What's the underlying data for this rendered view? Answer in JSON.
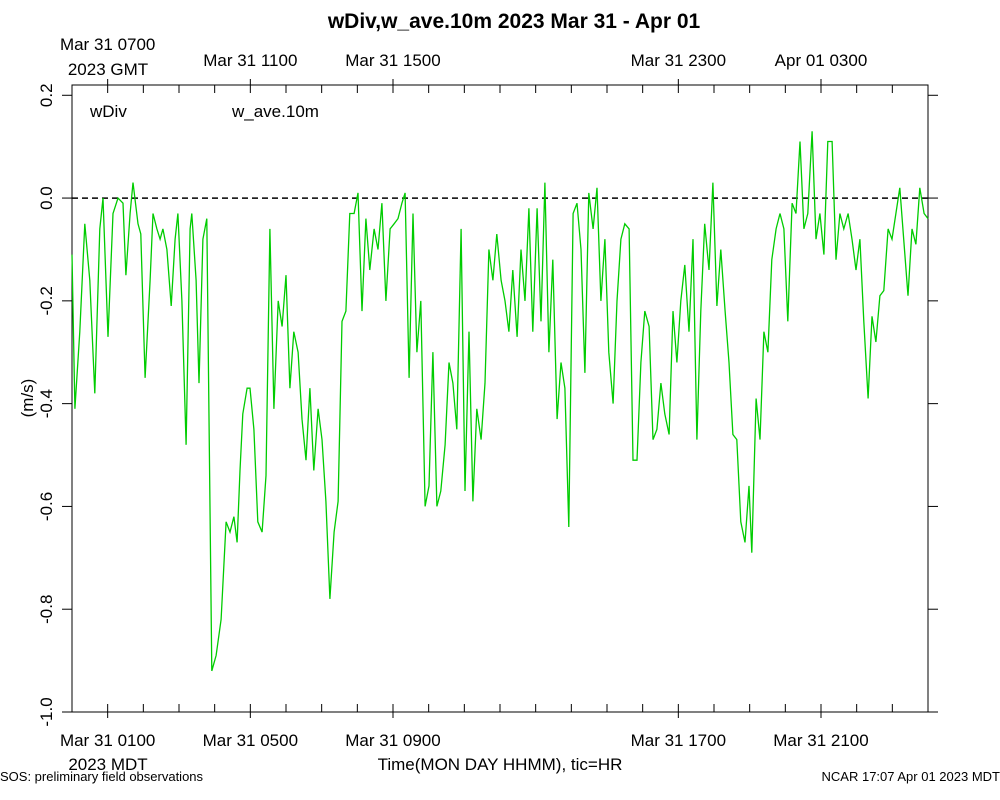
{
  "chart_data": {
    "type": "line",
    "title": "wDiv,w_ave.10m 2023 Mar 31 - Apr 01",
    "ylabel": "(m/s)",
    "xlabel": "Time(MON DAY HHMM), tic=HR",
    "bottom_timezone": "2023 MDT",
    "top_timezone": "2023 GMT",
    "footer_left": "SOS: preliminary field observations",
    "footer_right": "NCAR 17:07 Apr 01 2023 MDT",
    "xlim": [
      0,
      24
    ],
    "ylim": [
      -1.0,
      0.22
    ],
    "reference_line": 0,
    "xticks": [
      0,
      1,
      2,
      3,
      4,
      5,
      6,
      7,
      8,
      9,
      10,
      11,
      12,
      13,
      14,
      15,
      16,
      17,
      18,
      19,
      20,
      21,
      22,
      23,
      24
    ],
    "xtick_labels": [
      {
        "value": 1,
        "label": "Mar 31 0100"
      },
      {
        "value": 5,
        "label": "Mar 31 0500"
      },
      {
        "value": 9,
        "label": "Mar 31 0900"
      },
      {
        "value": 17,
        "label": "Mar 31 1700"
      },
      {
        "value": 21,
        "label": "Mar 31 2100"
      }
    ],
    "x2tick_labels": [
      {
        "value": 1,
        "label": "Mar 31 0700"
      },
      {
        "value": 5,
        "label": "Mar 31 1100"
      },
      {
        "value": 9,
        "label": "Mar 31 1500"
      },
      {
        "value": 17,
        "label": "Mar 31 2300"
      },
      {
        "value": 21,
        "label": "Apr 01 0300"
      }
    ],
    "yticks": [
      {
        "value": -1.0,
        "label": "-1.0"
      },
      -0.8,
      -0.6,
      -0.4,
      -0.2,
      {
        "value": 0,
        "label": "0.0"
      },
      0.2
    ],
    "x": [
      0,
      0.08,
      0.22,
      0.36,
      0.5,
      0.64,
      0.78,
      0.87,
      1.01,
      1.15,
      1.29,
      1.43,
      1.51,
      1.63,
      1.71,
      1.85,
      1.93,
      2.05,
      2.19,
      2.27,
      2.38,
      2.47,
      2.55,
      2.66,
      2.78,
      2.89,
      2.97,
      3.08,
      3.2,
      3.31,
      3.36,
      3.48,
      3.56,
      3.67,
      3.78,
      3.92,
      4.04,
      4.18,
      4.32,
      4.43,
      4.54,
      4.63,
      4.71,
      4.79,
      4.91,
      4.99,
      5.1,
      5.21,
      5.33,
      5.44,
      5.55,
      5.66,
      5.78,
      5.89,
      6.0,
      6.11,
      6.22,
      6.34,
      6.45,
      6.56,
      6.67,
      6.78,
      6.9,
      7.01,
      7.12,
      7.23,
      7.35,
      7.46,
      7.57,
      7.68,
      7.79,
      7.91,
      8.02,
      8.13,
      8.24,
      8.35,
      8.47,
      8.58,
      8.69,
      8.8,
      8.92,
      9.03,
      9.14,
      9.25,
      9.34,
      9.45,
      9.56,
      9.67,
      9.78,
      9.9,
      10.01,
      10.12,
      10.23,
      10.34,
      10.46,
      10.57,
      10.68,
      10.79,
      10.91,
      11.02,
      11.13,
      11.24,
      11.35,
      11.47,
      11.58,
      11.69,
      11.8,
      11.91,
      12.03,
      12.14,
      12.25,
      12.36,
      12.48,
      12.59,
      12.7,
      12.81,
      12.92,
      13.04,
      13.15,
      13.26,
      13.37,
      13.48,
      13.6,
      13.71,
      13.82,
      13.93,
      14.05,
      14.16,
      14.27,
      14.38,
      14.49,
      14.61,
      14.72,
      14.83,
      14.94,
      15.05,
      15.17,
      15.28,
      15.39,
      15.5,
      15.62,
      15.73,
      15.84,
      15.95,
      16.06,
      16.18,
      16.29,
      16.4,
      16.51,
      16.62,
      16.74,
      16.85,
      16.96,
      17.07,
      17.18,
      17.3,
      17.41,
      17.52,
      17.63,
      17.74,
      17.86,
      17.97,
      18.08,
      18.19,
      18.31,
      18.42,
      18.53,
      18.64,
      18.75,
      18.87,
      18.98,
      19.06,
      19.18,
      19.29,
      19.4,
      19.51,
      19.62,
      19.74,
      19.85,
      19.96,
      20.07,
      20.19,
      20.3,
      20.41,
      20.52,
      20.63,
      20.75,
      20.86,
      20.97,
      21.08,
      21.19,
      21.31,
      21.42,
      21.53,
      21.64,
      21.76,
      21.87,
      21.98,
      22.09,
      22.2,
      22.32,
      22.43,
      22.54,
      22.65,
      22.76,
      22.88,
      22.99,
      23.1,
      23.21,
      23.32,
      23.44,
      23.55,
      23.66,
      23.77,
      23.89,
      24.0
    ],
    "series": [
      {
        "name": "wDiv",
        "color": "#ff0000"
      },
      {
        "name": "w_ave.10m",
        "color": "#00cc00",
        "values": [
          -0.11,
          -0.41,
          -0.26,
          -0.05,
          -0.16,
          -0.38,
          -0.06,
          0.0,
          -0.27,
          -0.03,
          0.0,
          -0.01,
          -0.15,
          -0.03,
          0.03,
          -0.05,
          -0.07,
          -0.35,
          -0.16,
          -0.03,
          -0.06,
          -0.08,
          -0.06,
          -0.1,
          -0.21,
          -0.08,
          -0.03,
          -0.2,
          -0.48,
          -0.06,
          -0.03,
          -0.16,
          -0.36,
          -0.08,
          -0.04,
          -0.92,
          -0.89,
          -0.82,
          -0.63,
          -0.65,
          -0.62,
          -0.67,
          -0.53,
          -0.42,
          -0.37,
          -0.37,
          -0.45,
          -0.63,
          -0.65,
          -0.54,
          -0.06,
          -0.41,
          -0.2,
          -0.25,
          -0.15,
          -0.37,
          -0.26,
          -0.3,
          -0.43,
          -0.51,
          -0.37,
          -0.53,
          -0.41,
          -0.47,
          -0.59,
          -0.78,
          -0.65,
          -0.59,
          -0.24,
          -0.22,
          -0.03,
          -0.03,
          0.01,
          -0.22,
          -0.04,
          -0.14,
          -0.06,
          -0.1,
          -0.01,
          -0.2,
          -0.06,
          -0.05,
          -0.04,
          -0.01,
          0.01,
          -0.35,
          -0.03,
          -0.3,
          -0.2,
          -0.6,
          -0.56,
          -0.3,
          -0.6,
          -0.57,
          -0.48,
          -0.32,
          -0.36,
          -0.45,
          -0.06,
          -0.57,
          -0.26,
          -0.59,
          -0.41,
          -0.47,
          -0.36,
          -0.1,
          -0.16,
          -0.07,
          -0.16,
          -0.2,
          -0.26,
          -0.14,
          -0.27,
          -0.1,
          -0.2,
          -0.02,
          -0.26,
          -0.02,
          -0.24,
          0.03,
          -0.3,
          -0.12,
          -0.43,
          -0.32,
          -0.37,
          -0.64,
          -0.03,
          -0.01,
          -0.1,
          -0.34,
          0.01,
          -0.06,
          0.02,
          -0.2,
          -0.08,
          -0.3,
          -0.4,
          -0.2,
          -0.08,
          -0.05,
          -0.06,
          -0.51,
          -0.51,
          -0.32,
          -0.22,
          -0.25,
          -0.47,
          -0.45,
          -0.36,
          -0.42,
          -0.46,
          -0.22,
          -0.32,
          -0.2,
          -0.13,
          -0.26,
          -0.08,
          -0.47,
          -0.22,
          -0.05,
          -0.14,
          0.03,
          -0.21,
          -0.1,
          -0.22,
          -0.32,
          -0.46,
          -0.47,
          -0.63,
          -0.67,
          -0.56,
          -0.69,
          -0.39,
          -0.47,
          -0.26,
          -0.3,
          -0.12,
          -0.06,
          -0.03,
          -0.06,
          -0.24,
          -0.01,
          -0.03,
          0.11,
          -0.06,
          -0.03,
          0.13,
          -0.08,
          -0.03,
          -0.11,
          0.11,
          0.11,
          -0.12,
          -0.03,
          -0.06,
          -0.03,
          -0.08,
          -0.14,
          -0.08,
          -0.24,
          -0.39,
          -0.23,
          -0.28,
          -0.19,
          -0.18,
          -0.06,
          -0.08,
          -0.03,
          0.02,
          -0.08,
          -0.19,
          -0.06,
          -0.09,
          0.02,
          -0.03,
          -0.04
        ]
      }
    ]
  }
}
